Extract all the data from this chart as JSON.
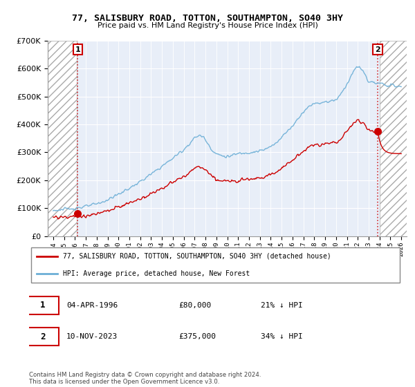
{
  "title": "77, SALISBURY ROAD, TOTTON, SOUTHAMPTON, SO40 3HY",
  "subtitle": "Price paid vs. HM Land Registry's House Price Index (HPI)",
  "legend_line1": "77, SALISBURY ROAD, TOTTON, SOUTHAMPTON, SO40 3HY (detached house)",
  "legend_line2": "HPI: Average price, detached house, New Forest",
  "annotation1_date": "04-APR-1996",
  "annotation1_price": "£80,000",
  "annotation1_hpi": "21% ↓ HPI",
  "annotation2_date": "10-NOV-2023",
  "annotation2_price": "£375,000",
  "annotation2_hpi": "34% ↓ HPI",
  "footer": "Contains HM Land Registry data © Crown copyright and database right 2024.\nThis data is licensed under the Open Government Licence v3.0.",
  "hpi_color": "#6baed6",
  "price_color": "#cc0000",
  "annotation_box_color": "#cc0000",
  "dashed_line_color": "#cc0000",
  "background_plot": "#e8eef8",
  "ylim": [
    0,
    700000
  ],
  "xmin": 1993.5,
  "xmax": 2026.5,
  "t1": 1996.25,
  "t2": 2023.833,
  "price1": 80000,
  "price2": 375000
}
